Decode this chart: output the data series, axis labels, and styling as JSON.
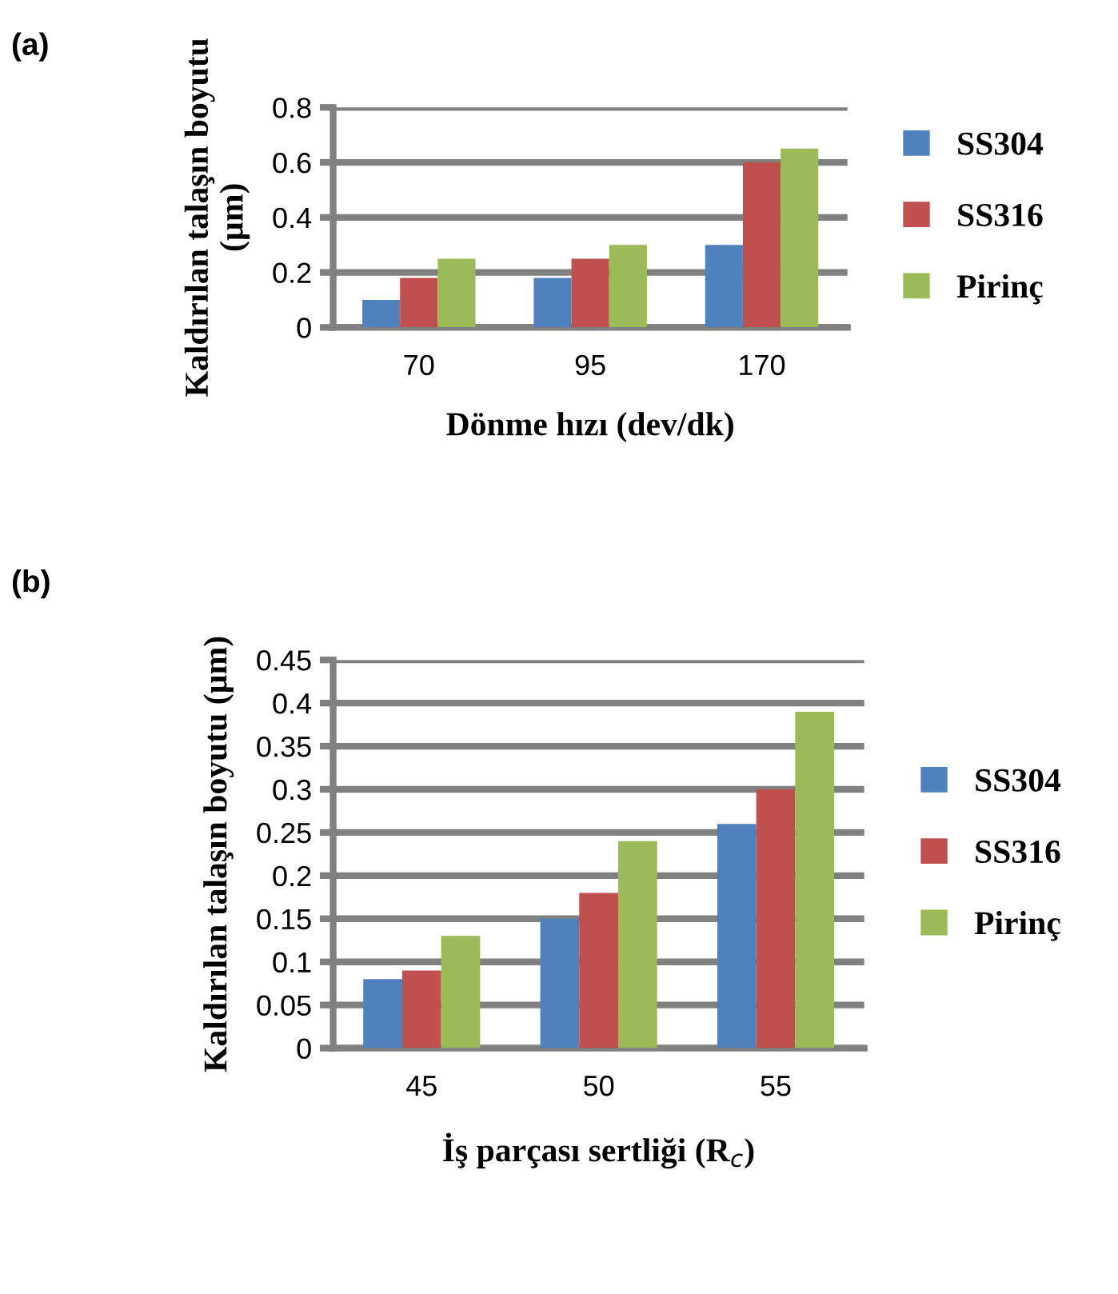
{
  "chart_data": [
    {
      "type": "bar",
      "annotations": [
        "(a)"
      ],
      "xlabel": "Dönme hızı (dev/dk)",
      "ylabel": "Kaldırılan talaşın boyutu (µm)",
      "categories": [
        "70",
        "95",
        "170"
      ],
      "series": [
        {
          "name": "SS304",
          "color": "#4f81bd",
          "values": [
            0.1,
            0.18,
            0.3
          ]
        },
        {
          "name": "SS316",
          "color": "#c0504d",
          "values": [
            0.18,
            0.25,
            0.6
          ]
        },
        {
          "name": "Pirinç",
          "color": "#9bbb59",
          "values": [
            0.25,
            0.3,
            0.65
          ]
        }
      ],
      "ylim": [
        0,
        0.8
      ],
      "yticks": [
        {
          "value": 0,
          "label": "0"
        },
        0.2,
        0.4,
        0.6,
        0.8
      ],
      "grid": "y",
      "legend": "right"
    },
    {
      "type": "bar",
      "annotations": [
        "(b)"
      ],
      "xlabel": "İş parçası sertliği (R$_{c}$)",
      "ylabel": "Kaldırılan talaşın boyutu (µm)",
      "categories": [
        "45",
        "50",
        "55"
      ],
      "series": [
        {
          "name": "SS304",
          "color": "#4f81bd",
          "values": [
            0.08,
            0.15,
            0.26
          ]
        },
        {
          "name": "SS316",
          "color": "#c0504d",
          "values": [
            0.09,
            0.18,
            0.3
          ]
        },
        {
          "name": "Pirinç",
          "color": "#9bbb59",
          "values": [
            0.13,
            0.24,
            0.39
          ]
        }
      ],
      "ylim": [
        0,
        0.45
      ],
      "yticks": [
        {
          "value": 0,
          "label": "0"
        },
        0.05,
        0.1,
        0.15,
        0.2,
        0.25,
        0.3,
        0.35,
        0.4,
        0.45
      ],
      "grid": "y",
      "legend": "right"
    }
  ]
}
